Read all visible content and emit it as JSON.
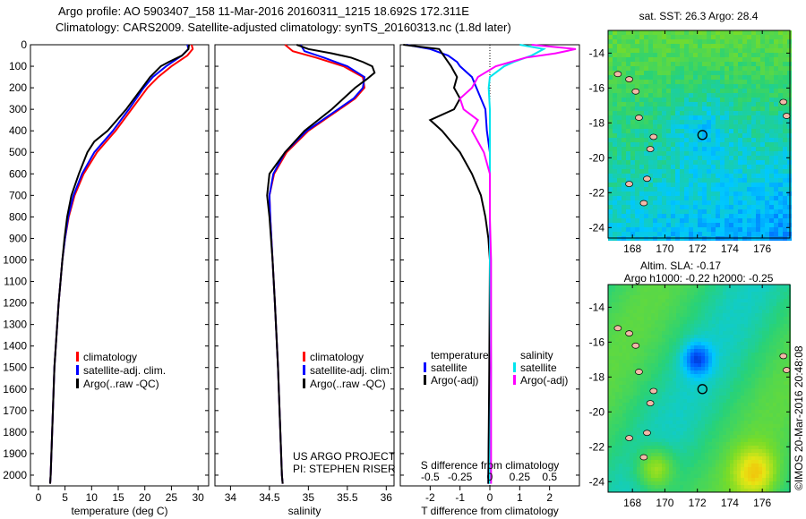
{
  "title": {
    "line1": "Argo profile: AO 5903407_158 11-Mar-2016 20160311_1215 18.692S 172.311E",
    "line2": "Climatology: CARS2009. Satellite-adjusted climatology: synTS_20160313.nc (1.8d later)"
  },
  "credit": "©IMOS 20-Mar-2016 20:48:08",
  "project": {
    "line1": "US ARGO PROJECT",
    "line2": "PI: STEPHEN RISER"
  },
  "colors": {
    "climatology": "#ff0000",
    "satellite": "#0000ff",
    "argo": "#000000",
    "sal_satellite": "#00e5ee",
    "sal_argo": "#ff00ff"
  },
  "chart_data": [
    {
      "type": "line",
      "xlabel": "temperature (deg C)",
      "ylabel": "",
      "xlim": [
        -1.5,
        32
      ],
      "ylim": [
        2050,
        0
      ],
      "xticks": [
        0,
        5,
        10,
        15,
        20,
        25,
        30
      ],
      "yticks": [
        0,
        100,
        200,
        300,
        400,
        500,
        600,
        700,
        800,
        900,
        1000,
        1100,
        1200,
        1300,
        1400,
        1500,
        1600,
        1700,
        1800,
        1900,
        2000
      ],
      "legend": [
        "climatology",
        "satellite-adj. clim.",
        "Argo(..raw -QC)"
      ],
      "series": [
        {
          "name": "climatology",
          "depth": [
            0,
            20,
            50,
            100,
            150,
            200,
            300,
            400,
            500,
            600,
            700,
            800,
            900,
            1000,
            1200,
            1500,
            2000,
            2040
          ],
          "values": [
            28.8,
            29,
            28,
            25,
            22.5,
            20.5,
            17.5,
            14.5,
            11,
            8.5,
            6.8,
            5.7,
            5,
            4.5,
            3.8,
            3,
            2.3,
            2.2
          ]
        },
        {
          "name": "satellite-adj. clim.",
          "depth": [
            0,
            20,
            50,
            100,
            150,
            200,
            300,
            400,
            500,
            600,
            700,
            800,
            900,
            1000,
            1200,
            1500,
            2000,
            2040
          ],
          "values": [
            28,
            28.2,
            27,
            24,
            21.5,
            19.8,
            17,
            14,
            10.5,
            8.2,
            6.6,
            5.6,
            5,
            4.5,
            3.8,
            3,
            2.3,
            2.2
          ]
        },
        {
          "name": "Argo(..raw -QC)",
          "depth": [
            0,
            20,
            50,
            80,
            100,
            150,
            200,
            300,
            400,
            450,
            500,
            600,
            700,
            800,
            900,
            1000,
            1200,
            1500,
            2000,
            2040
          ],
          "values": [
            28.3,
            28.2,
            27,
            24.5,
            23,
            21,
            19.5,
            16.5,
            13,
            10.5,
            9.2,
            7.6,
            6.2,
            5.4,
            4.9,
            4.5,
            3.8,
            3,
            2.3,
            2.2
          ]
        }
      ]
    },
    {
      "type": "line",
      "xlabel": "salinity",
      "ylabel": "",
      "xlim": [
        33.8,
        36.1
      ],
      "ylim": [
        2050,
        0
      ],
      "xticks": [
        34,
        34.5,
        35,
        35.5,
        36
      ],
      "xticklabels": [
        "34",
        "34.5",
        "35",
        "35.5",
        "36"
      ],
      "legend": [
        "climatology",
        "satellite-adj. clim.",
        "Argo(..raw -QC)"
      ],
      "series": [
        {
          "name": "climatology",
          "depth": [
            0,
            30,
            60,
            100,
            150,
            200,
            250,
            300,
            400,
            500,
            600,
            700,
            800,
            1000,
            1200,
            1500,
            2000,
            2040
          ],
          "values": [
            34.7,
            34.8,
            35.1,
            35.45,
            35.7,
            35.72,
            35.6,
            35.4,
            35.0,
            34.72,
            34.56,
            34.5,
            34.51,
            34.54,
            34.57,
            34.61,
            34.66,
            34.67
          ]
        },
        {
          "name": "satellite-adj. clim.",
          "depth": [
            0,
            30,
            60,
            100,
            150,
            200,
            250,
            300,
            400,
            500,
            600,
            700,
            800,
            1000,
            1200,
            1500,
            2000,
            2040
          ],
          "values": [
            34.9,
            34.95,
            35.2,
            35.5,
            35.72,
            35.7,
            35.58,
            35.38,
            34.98,
            34.7,
            34.55,
            34.5,
            34.51,
            34.54,
            34.57,
            34.61,
            34.66,
            34.67
          ]
        },
        {
          "name": "Argo(..raw -QC)",
          "depth": [
            0,
            20,
            40,
            60,
            80,
            100,
            130,
            160,
            200,
            250,
            300,
            400,
            500,
            550,
            600,
            700,
            800,
            1000,
            1200,
            1500,
            2000,
            2040
          ],
          "values": [
            34.85,
            35.0,
            35.3,
            35.55,
            35.7,
            35.82,
            35.85,
            35.75,
            35.6,
            35.45,
            35.3,
            34.95,
            34.7,
            34.6,
            34.5,
            34.47,
            34.5,
            34.54,
            34.57,
            34.61,
            34.66,
            34.67
          ]
        }
      ]
    },
    {
      "type": "line",
      "xlabel": "T difference from climatology",
      "x2label": "S difference from climatology",
      "xlim": [
        -3,
        3
      ],
      "x2lim": [
        -0.75,
        0.75
      ],
      "ylim": [
        2050,
        0
      ],
      "xticks": [
        -2,
        -1,
        0,
        1,
        2
      ],
      "x2ticks": [
        -0.5,
        -0.25,
        0,
        0.25,
        0.5
      ],
      "legend": {
        "temperature": "temperature",
        "salinity": "salinity",
        "t_sat": "satellite",
        "t_argo": "Argo(-adj)",
        "s_sat": "satellite",
        "s_argo": "Argo(-adj)"
      },
      "series": [
        {
          "name": "T satellite",
          "axis": "T",
          "depth": [
            0,
            20,
            50,
            80,
            100,
            150,
            200,
            250,
            300,
            400,
            500,
            600,
            800,
            1000,
            1500,
            2000,
            2040
          ],
          "values": [
            -2.8,
            -2.0,
            -1.4,
            -1.1,
            -1.0,
            -0.6,
            -0.45,
            -0.3,
            -0.15,
            -0.1,
            0,
            0,
            0,
            0,
            0,
            -0.05,
            -0.05
          ]
        },
        {
          "name": "T Argo(-adj)",
          "axis": "T",
          "depth": [
            0,
            20,
            40,
            60,
            100,
            150,
            200,
            250,
            300,
            350,
            400,
            450,
            500,
            600,
            700,
            800,
            900,
            1000,
            1500,
            2000,
            2040
          ],
          "values": [
            -2.9,
            -1.7,
            -1.6,
            -1.5,
            -1.3,
            -1.1,
            -1.2,
            -1.0,
            -1.2,
            -2.0,
            -1.6,
            -1.3,
            -1.0,
            -0.6,
            -0.3,
            -0.15,
            -0.05,
            0,
            -0.02,
            -0.05,
            -0.05
          ]
        },
        {
          "name": "S satellite",
          "axis": "S",
          "depth": [
            0,
            20,
            50,
            80,
            100,
            150,
            200,
            300,
            400,
            600,
            1000,
            1500,
            2000,
            2040
          ],
          "values": [
            0.25,
            0.45,
            0.35,
            0.2,
            0.12,
            0.0,
            -0.01,
            0,
            0,
            0,
            0,
            0.01,
            0,
            0
          ]
        },
        {
          "name": "S Argo(-adj)",
          "axis": "S",
          "depth": [
            0,
            20,
            40,
            60,
            100,
            150,
            200,
            250,
            300,
            350,
            400,
            500,
            600,
            800,
            1000,
            1500,
            2000,
            2040
          ],
          "values": [
            0.35,
            0.72,
            0.55,
            0.3,
            0.05,
            -0.1,
            -0.15,
            -0.25,
            -0.22,
            -0.1,
            -0.15,
            -0.05,
            0,
            0,
            0.01,
            0.01,
            0.01,
            0.01
          ]
        }
      ]
    },
    {
      "type": "heatmap",
      "title": "sat. SST: 26.3 Argo: 28.4",
      "xlim": [
        166.5,
        177.7
      ],
      "ylim": [
        -24.6,
        -12.7
      ],
      "xticks": [
        168,
        170,
        172,
        174,
        176
      ],
      "yticks": [
        -14,
        -16,
        -18,
        -20,
        -22,
        -24
      ],
      "marker": {
        "lon": 172.311,
        "lat": -18.692
      }
    },
    {
      "type": "heatmap",
      "title": "Altim. SLA: -0.17",
      "subtitle": "Argo h1000: -0.22 h2000: -0.25",
      "xlim": [
        166.5,
        177.7
      ],
      "ylim": [
        -24.6,
        -12.7
      ],
      "xticks": [
        168,
        170,
        172,
        174,
        176
      ],
      "yticks": [
        -14,
        -16,
        -18,
        -20,
        -22,
        -24
      ],
      "marker": {
        "lon": 172.311,
        "lat": -18.692
      }
    }
  ]
}
